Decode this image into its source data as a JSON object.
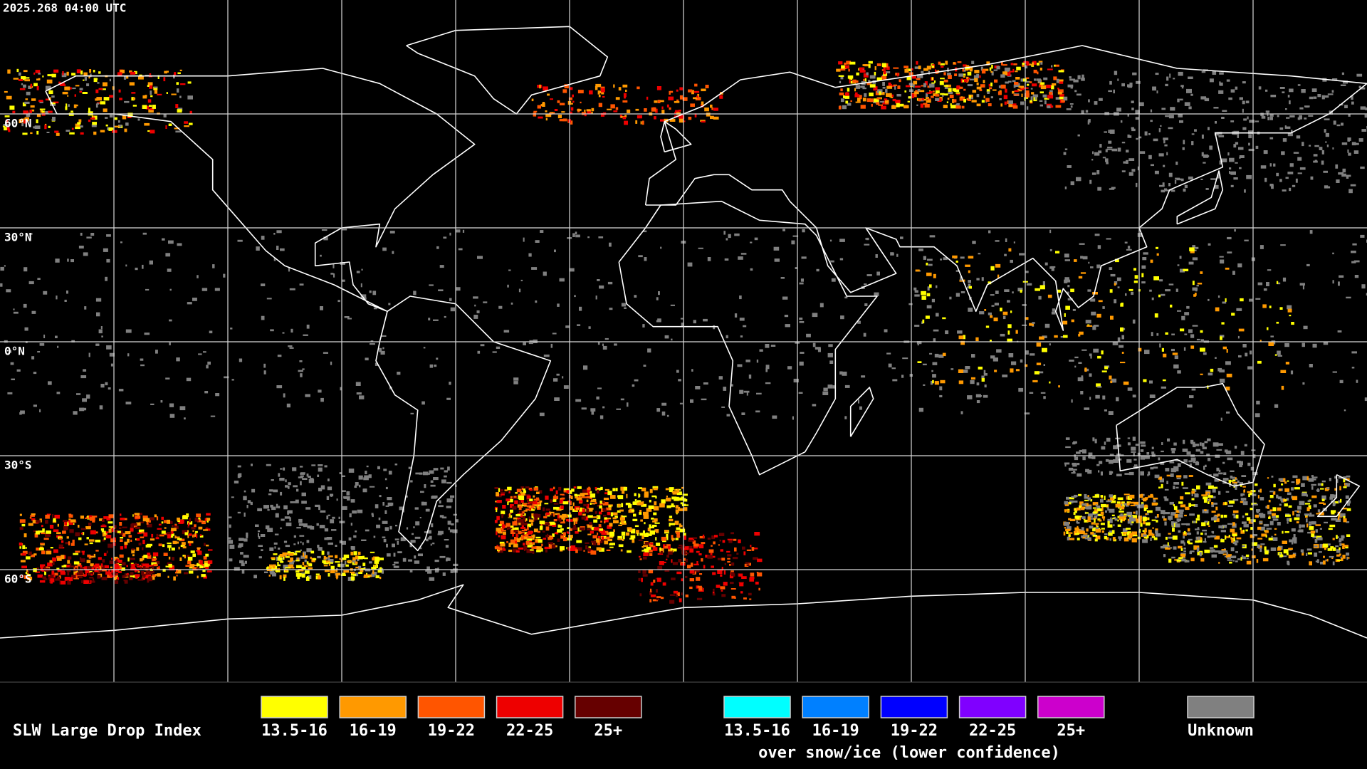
{
  "header": {
    "timestamp": "2025.268 04:00 UTC"
  },
  "map": {
    "latitude_labels": [
      "60°N",
      "30°N",
      "0°N",
      "30°S",
      "60°S"
    ]
  },
  "legend": {
    "title": "SLW Large Drop Index",
    "liquid": [
      {
        "label": "13.5-16",
        "color": "#ffff00"
      },
      {
        "label": "16-19",
        "color": "#ff9900"
      },
      {
        "label": "19-22",
        "color": "#ff5500"
      },
      {
        "label": "22-25",
        "color": "#ee0000"
      },
      {
        "label": "25+",
        "color": "#660000"
      }
    ],
    "snow_ice": [
      {
        "label": "13.5-16",
        "color": "#00ffff"
      },
      {
        "label": "16-19",
        "color": "#0080ff"
      },
      {
        "label": "19-22",
        "color": "#0000ff"
      },
      {
        "label": "22-25",
        "color": "#8000ff"
      },
      {
        "label": "25+",
        "color": "#cc00cc"
      }
    ],
    "snow_ice_note": "over snow/ice (lower confidence)",
    "unknown": {
      "label": "Unknown",
      "color": "#808080"
    }
  }
}
